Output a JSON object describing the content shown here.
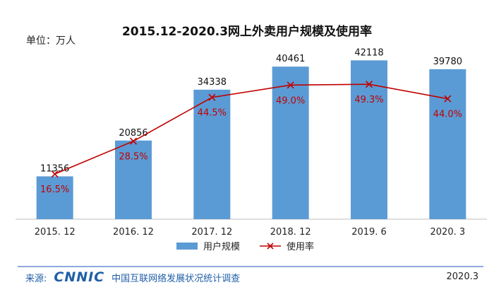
{
  "chart_data": {
    "type": "bar",
    "title": "2015.12-2020.3网上外卖用户规模及使用率",
    "unit_label": "单位：万人",
    "categories": [
      "2015. 12",
      "2016. 12",
      "2017. 12",
      "2018. 12",
      "2019. 6",
      "2020. 3"
    ],
    "series": [
      {
        "name": "用户规模",
        "type": "bar",
        "values": [
          11356,
          20856,
          34338,
          40461,
          42118,
          39780
        ],
        "labels": [
          "11356",
          "20856",
          "34338",
          "40461",
          "42118",
          "39780"
        ],
        "color": "#5b9bd5"
      },
      {
        "name": "使用率",
        "type": "line",
        "values": [
          16.5,
          28.5,
          44.5,
          49.0,
          49.3,
          44.0
        ],
        "labels": [
          "16.5%",
          "28.5%",
          "44.5%",
          "49.0%",
          "49.3%",
          "44.0%"
        ],
        "color": "#c00000",
        "marker": "x"
      }
    ],
    "ylim_bars": [
      0,
      45000
    ],
    "ylim_rate": [
      0,
      62
    ],
    "grid": false,
    "legend_position": "bottom-center"
  },
  "footer": {
    "source_label": "来源:",
    "logo_text": "CNNIC",
    "org_name": "中国互联网络发展状况统计调查",
    "date": "2020.3"
  },
  "colors": {
    "bar": "#5b9bd5",
    "line": "#c00000",
    "footer_rule": "#8faadc",
    "brand": "#1f5fa8"
  }
}
